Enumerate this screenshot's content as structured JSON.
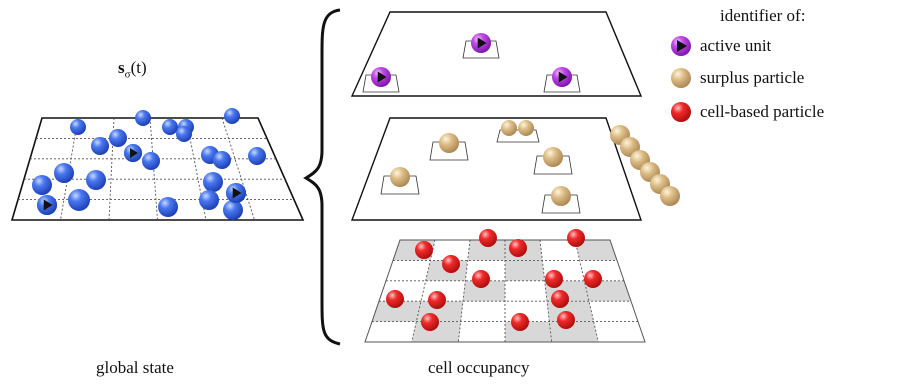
{
  "labels": {
    "state_symbol": "s",
    "state_subscript": "σ",
    "state_arg": "(t)",
    "global_caption": "global state",
    "cell_caption": "cell occupancy"
  },
  "legend": {
    "title": "identifier of:",
    "items": [
      {
        "label": "active unit",
        "color": "#b233e0",
        "marker": "play-icon"
      },
      {
        "label": "surplus particle",
        "color": "#d4b27a",
        "marker": "none"
      },
      {
        "label": "cell-based particle",
        "color": "#e81818",
        "marker": "none"
      }
    ]
  },
  "colors": {
    "global_particle": "#2f5fe8",
    "active_unit": "#b233e0",
    "surplus_particle": "#d4b27a",
    "cell_particle": "#e81818",
    "occupied_cell": "#d8d8d8"
  }
}
